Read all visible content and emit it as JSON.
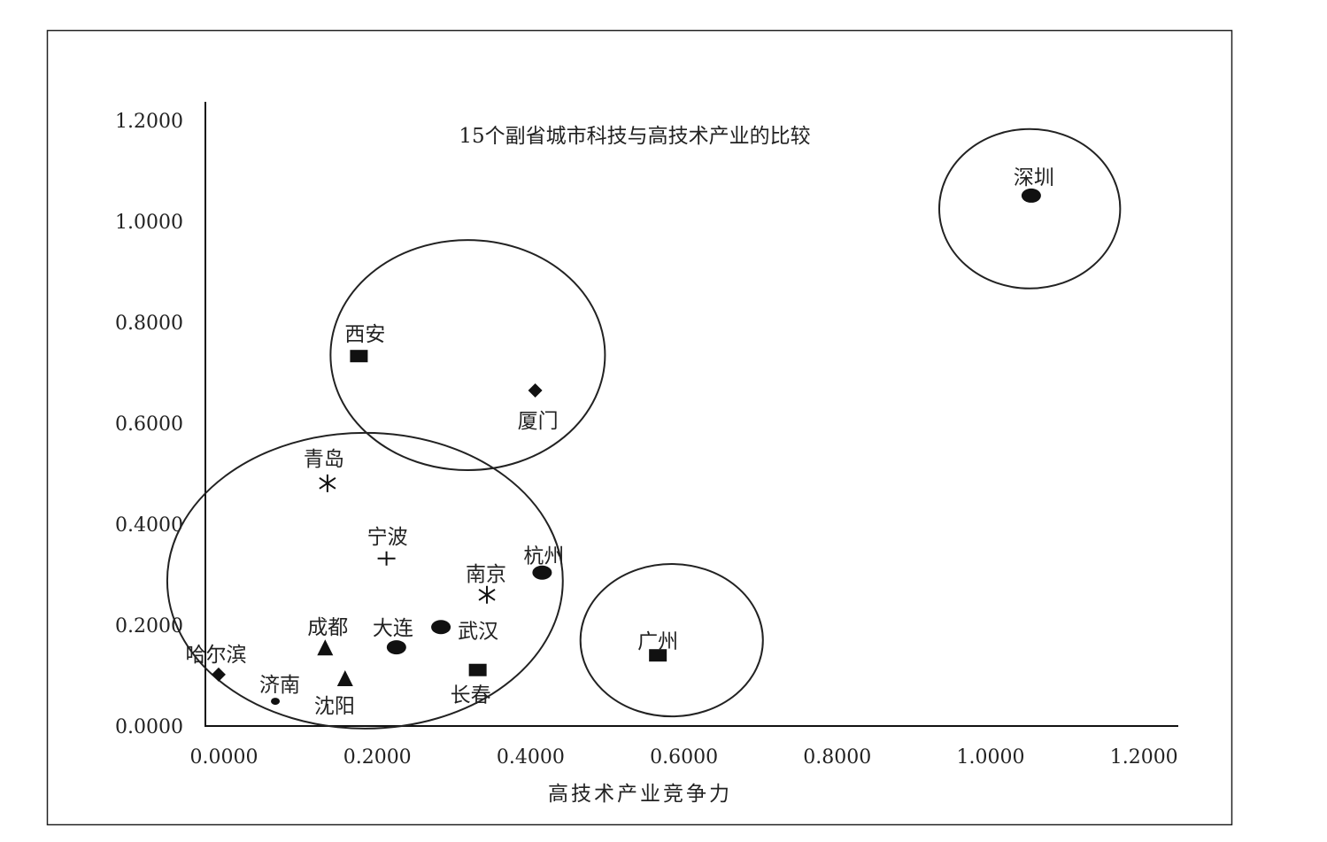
{
  "chart_data": {
    "type": "scatter",
    "title": "15个副省城市科技与高技术产业的比较",
    "xlabel": "高技术产业竞争力",
    "ylabel": "",
    "xlim": [
      0,
      1.2
    ],
    "ylim": [
      0,
      1.2
    ],
    "grid": false,
    "x_ticks": [
      "0.0000",
      "0.2000",
      "0.4000",
      "0.6000",
      "0.8000",
      "1.0000",
      "1.2000"
    ],
    "y_ticks": [
      "0.0000",
      "0.2000",
      "0.4000",
      "0.6000",
      "0.8000",
      "1.0000",
      "1.2000"
    ],
    "points": [
      {
        "name": "深圳",
        "x": 1.053,
        "y": 1.051,
        "marker": "ellipse"
      },
      {
        "name": "西安",
        "x": 0.176,
        "y": 0.733,
        "marker": "square"
      },
      {
        "name": "厦门",
        "x": 0.406,
        "y": 0.665,
        "marker": "diamond"
      },
      {
        "name": "青岛",
        "x": 0.135,
        "y": 0.481,
        "marker": "asterisk"
      },
      {
        "name": "宁波",
        "x": 0.212,
        "y": 0.332,
        "marker": "plus"
      },
      {
        "name": "杭州",
        "x": 0.415,
        "y": 0.304,
        "marker": "ellipse"
      },
      {
        "name": "南京",
        "x": 0.343,
        "y": 0.26,
        "marker": "asterisk"
      },
      {
        "name": "武汉",
        "x": 0.283,
        "y": 0.196,
        "marker": "ellipse"
      },
      {
        "name": "大连",
        "x": 0.225,
        "y": 0.156,
        "marker": "ellipse"
      },
      {
        "name": "成都",
        "x": 0.132,
        "y": 0.154,
        "marker": "triangle"
      },
      {
        "name": "长春",
        "x": 0.331,
        "y": 0.111,
        "marker": "square"
      },
      {
        "name": "广州",
        "x": 0.566,
        "y": 0.14,
        "marker": "square"
      },
      {
        "name": "哈尔滨",
        "x": -0.007,
        "y": 0.102,
        "marker": "diamond"
      },
      {
        "name": "沈阳",
        "x": 0.158,
        "y": 0.093,
        "marker": "triangle"
      },
      {
        "name": "济南",
        "x": 0.067,
        "y": 0.049,
        "marker": "small-circle"
      }
    ],
    "group_ellipses": [
      {
        "members": [
          "深圳"
        ],
        "cx": 1.051,
        "cy": 1.025,
        "rx": 0.118,
        "ry": 0.158
      },
      {
        "members": [
          "西安",
          "厦门"
        ],
        "cx": 0.318,
        "cy": 0.735,
        "rx": 0.179,
        "ry": 0.228
      },
      {
        "members": [
          "青岛",
          "宁波",
          "杭州",
          "南京",
          "武汉",
          "大连",
          "成都",
          "长春",
          "哈尔滨",
          "沈阳",
          "济南"
        ],
        "cx": 0.184,
        "cy": 0.288,
        "rx": 0.258,
        "ry": 0.293
      },
      {
        "members": [
          "广州"
        ],
        "cx": 0.584,
        "cy": 0.17,
        "rx": 0.119,
        "ry": 0.151
      }
    ]
  }
}
